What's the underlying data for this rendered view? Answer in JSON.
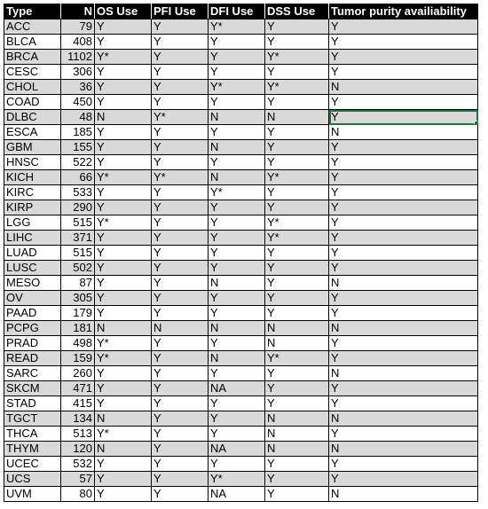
{
  "sheet": {
    "headers": [
      "Type",
      "N",
      "OS Use",
      "PFI Use",
      "DFI Use",
      "DSS Use",
      "Tumor purity availiability"
    ],
    "rows": [
      [
        "ACC",
        "79",
        "Y",
        "Y",
        "Y*",
        "Y",
        "Y"
      ],
      [
        "BLCA",
        "408",
        "Y",
        "Y",
        "Y",
        "Y",
        "Y"
      ],
      [
        "BRCA",
        "1102",
        "Y*",
        "Y",
        "Y",
        "Y*",
        "Y"
      ],
      [
        "CESC",
        "306",
        "Y",
        "Y",
        "Y",
        "Y",
        "Y"
      ],
      [
        "CHOL",
        "36",
        "Y",
        "Y",
        "Y*",
        "Y*",
        "N"
      ],
      [
        "COAD",
        "450",
        "Y",
        "Y",
        "Y",
        "Y",
        "Y"
      ],
      [
        "DLBC",
        "48",
        "N",
        "Y*",
        "N",
        "N",
        "Y"
      ],
      [
        "ESCA",
        "185",
        "Y",
        "Y",
        "Y",
        "Y",
        "N"
      ],
      [
        "GBM",
        "155",
        "Y",
        "Y",
        "N",
        "Y",
        "Y"
      ],
      [
        "HNSC",
        "522",
        "Y",
        "Y",
        "Y",
        "Y",
        "Y"
      ],
      [
        "KICH",
        "66",
        "Y*",
        "Y*",
        "N",
        "Y*",
        "Y"
      ],
      [
        "KIRC",
        "533",
        "Y",
        "Y",
        "Y*",
        "Y",
        "Y"
      ],
      [
        "KIRP",
        "290",
        "Y",
        "Y",
        "Y",
        "Y",
        "Y"
      ],
      [
        "LGG",
        "515",
        "Y*",
        "Y",
        "Y",
        "Y*",
        "Y"
      ],
      [
        "LIHC",
        "371",
        "Y",
        "Y",
        "Y",
        "Y*",
        "Y"
      ],
      [
        "LUAD",
        "515",
        "Y",
        "Y",
        "Y",
        "Y",
        "Y"
      ],
      [
        "LUSC",
        "502",
        "Y",
        "Y",
        "Y",
        "Y",
        "Y"
      ],
      [
        "MESO",
        "87",
        "Y",
        "Y",
        "N",
        "Y",
        "N"
      ],
      [
        "OV",
        "305",
        "Y",
        "Y",
        "Y",
        "Y",
        "Y"
      ],
      [
        "PAAD",
        "179",
        "Y",
        "Y",
        "Y",
        "Y",
        "Y"
      ],
      [
        "PCPG",
        "181",
        "N",
        "N",
        "N",
        "N",
        "N"
      ],
      [
        "PRAD",
        "498",
        "Y*",
        "Y",
        "Y",
        "N",
        "Y"
      ],
      [
        "READ",
        "159",
        "Y*",
        "Y",
        "N",
        "Y*",
        "Y"
      ],
      [
        "SARC",
        "260",
        "Y",
        "Y",
        "Y",
        "Y",
        "N"
      ],
      [
        "SKCM",
        "471",
        "Y",
        "Y",
        "NA",
        "Y",
        "Y"
      ],
      [
        "STAD",
        "415",
        "Y",
        "Y",
        "Y",
        "Y",
        "Y"
      ],
      [
        "TGCT",
        "134",
        "N",
        "Y",
        "Y",
        "N",
        "N"
      ],
      [
        "THCA",
        "513",
        "Y*",
        "Y",
        "Y",
        "N",
        "Y"
      ],
      [
        "THYM",
        "120",
        "N",
        "Y",
        "NA",
        "N",
        "N"
      ],
      [
        "UCEC",
        "532",
        "Y",
        "Y",
        "Y",
        "Y",
        "Y"
      ],
      [
        "UCS",
        "57",
        "Y",
        "Y",
        "Y*",
        "Y",
        "Y"
      ],
      [
        "UVM",
        "80",
        "Y",
        "Y",
        "NA",
        "Y",
        "N"
      ]
    ],
    "shaded_rows": [
      0,
      2,
      4,
      6,
      8,
      10,
      12,
      14,
      16,
      18,
      20,
      22,
      24,
      26,
      28,
      30
    ],
    "selected_cell": {
      "row": 6,
      "col": 6
    }
  },
  "colors": {
    "header_bg": "#000000",
    "header_text": "#ffffff",
    "shade": "#d9d9d9",
    "selection": "#217346"
  }
}
